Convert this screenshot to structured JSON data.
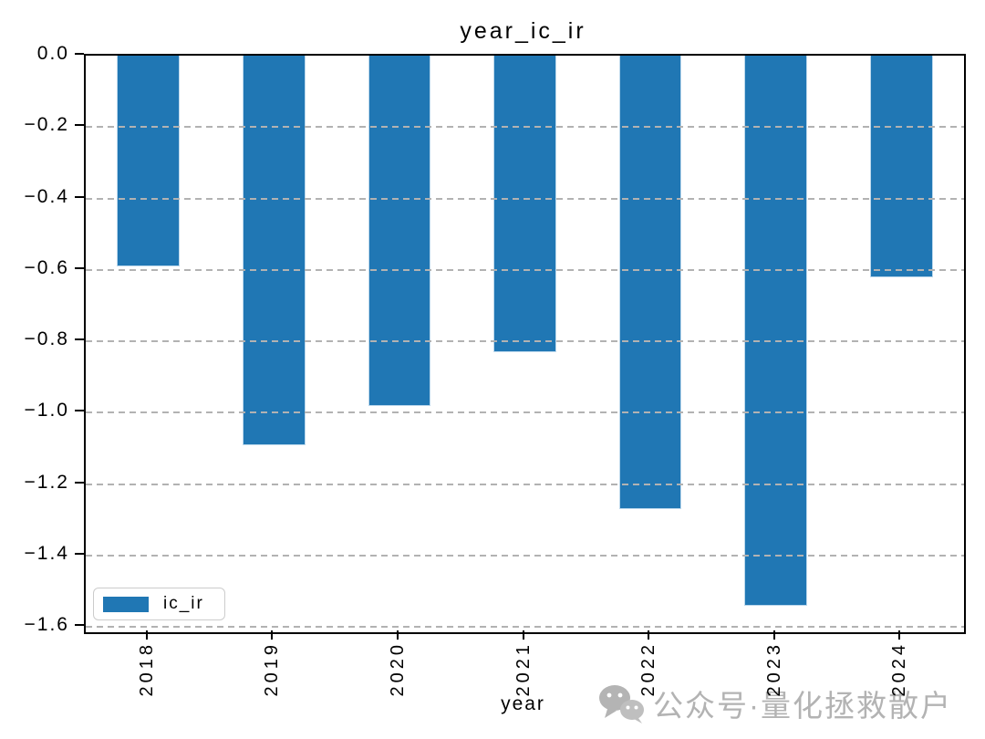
{
  "figure": {
    "title": "year_ic_ir",
    "xlabel": "year"
  },
  "legend": {
    "label": "ic_ir"
  },
  "watermark": {
    "icon": "wechat-icon",
    "text": "公众号·量化拯救散户"
  },
  "colors": {
    "bar": "#2077b4",
    "bar_edge": "#bcd8ec",
    "grid": "#b2b2b2",
    "spine": "#000000",
    "legend_border": "#cccccc",
    "watermark": "#b3b3b3"
  },
  "chart_data": {
    "type": "bar",
    "title": "year_ic_ir",
    "xlabel": "year",
    "ylabel": "",
    "categories": [
      "2018",
      "2019",
      "2020",
      "2021",
      "2022",
      "2023",
      "2024"
    ],
    "series": [
      {
        "name": "ic_ir",
        "values": [
          -0.59,
          -1.09,
          -0.98,
          -0.83,
          -1.27,
          -1.54,
          -0.62
        ]
      }
    ],
    "ylim": [
      -1.615,
      0.0
    ],
    "yticks": [
      0.0,
      -0.2,
      -0.4,
      -0.6,
      -0.8,
      -1.0,
      -1.2,
      -1.4,
      -1.6
    ],
    "ytick_labels": [
      "0.0",
      "−0.2",
      "−0.4",
      "−0.6",
      "−0.8",
      "−1.0",
      "−1.2",
      "−1.4",
      "−1.6"
    ],
    "xtick_rotation": 90,
    "grid": "horizontal-dashed",
    "grid_over_bars": true,
    "legend_position": "lower left",
    "bar_width_fraction": 0.5
  }
}
